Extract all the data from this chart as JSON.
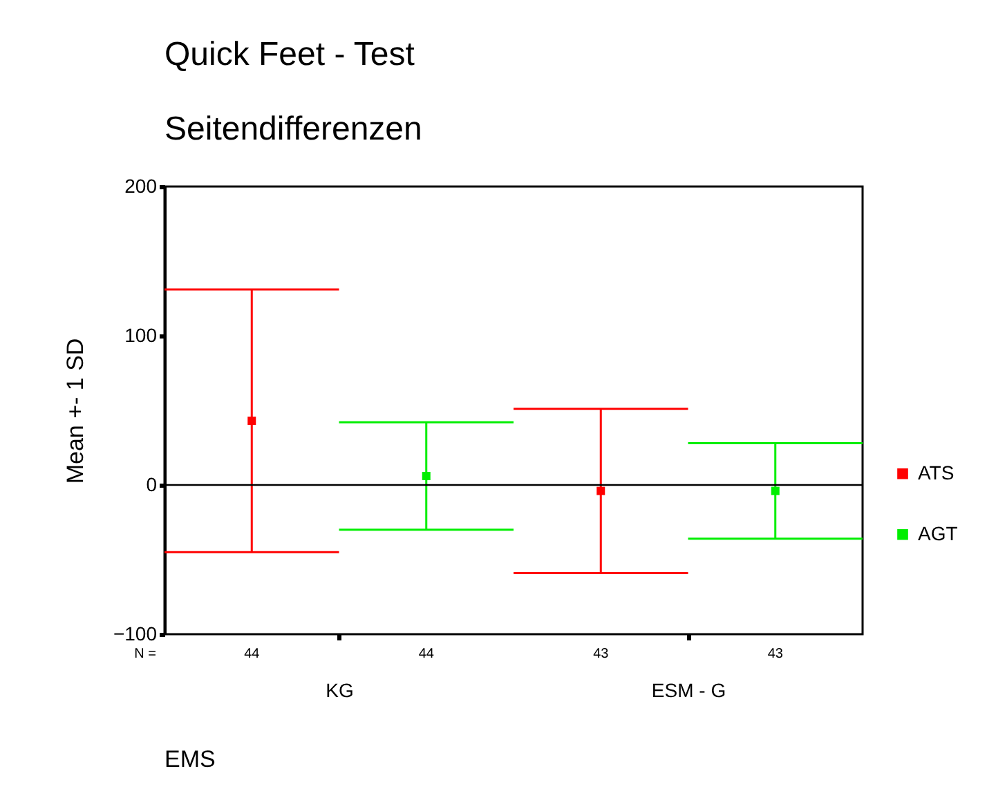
{
  "chart_data": {
    "type": "scatter",
    "title": "Quick Feet - Test",
    "subtitle": "Seitendifferenzen",
    "ylabel": "Mean +- 1 SD",
    "categories": [
      "KG",
      "ESM - G"
    ],
    "series": [
      {
        "name": "ATS",
        "color": "#ff0000",
        "values": [
          43,
          -4
        ],
        "errors": [
          88,
          55
        ]
      },
      {
        "name": "AGT",
        "color": "#00ee00",
        "values": [
          6,
          -4
        ],
        "errors": [
          36,
          32
        ]
      }
    ],
    "ylim": [
      -100,
      200
    ],
    "yticks": [
      -100,
      0,
      100,
      200
    ],
    "grid": false,
    "legend": "right",
    "marker": "square",
    "ref_lines": [
      {
        "axis": "y",
        "value": 0
      }
    ],
    "annotations": [
      "N =",
      "44",
      "44",
      "43",
      "43",
      "EMS"
    ]
  }
}
